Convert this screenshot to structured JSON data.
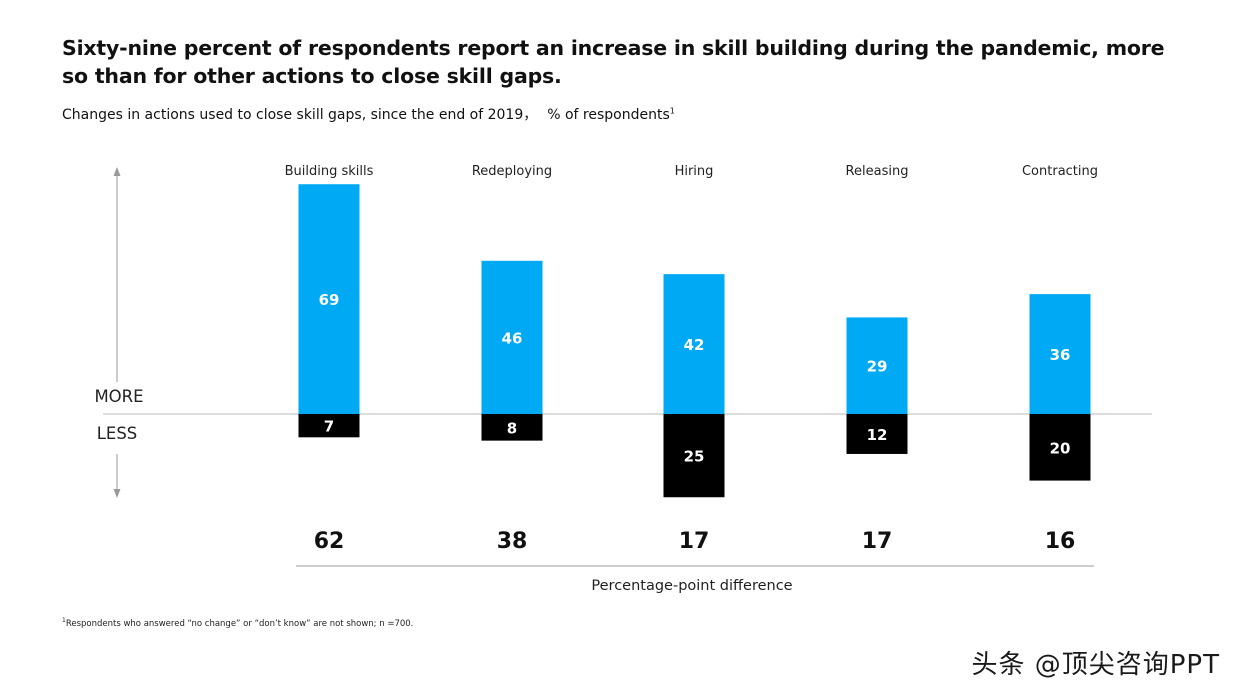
{
  "title": "Sixty-nine percent of respondents report an increase in skill building during the pandemic, more so than for other actions to close skill gaps.",
  "subtitle": {
    "text": "Changes in actions used to close skill gaps, since the end of 2019，",
    "unit": "% of respondents",
    "footnote_ref": "1"
  },
  "footnote": {
    "ref": "1",
    "text": "Respondents who answered “no change” or “don’t know” are not shown; n =700."
  },
  "watermark": "头条 @顶尖咨询PPT",
  "colors": {
    "more": "#00A9F4",
    "less": "#000000",
    "axis": "#bbbbbb",
    "arrow": "#999999"
  },
  "chart_data": {
    "type": "bar",
    "subtype": "diverging-stacked",
    "categories": [
      "Building skills",
      "Redeploying",
      "Hiring",
      "Releasing",
      "Contracting"
    ],
    "series": [
      {
        "name": "MORE",
        "values": [
          69,
          46,
          42,
          29,
          36
        ]
      },
      {
        "name": "LESS",
        "values": [
          7,
          8,
          25,
          12,
          20
        ]
      }
    ],
    "difference": [
      62,
      38,
      17,
      17,
      16
    ],
    "difference_label": "Percentage-point difference",
    "more_label": "MORE",
    "less_label": "LESS"
  }
}
